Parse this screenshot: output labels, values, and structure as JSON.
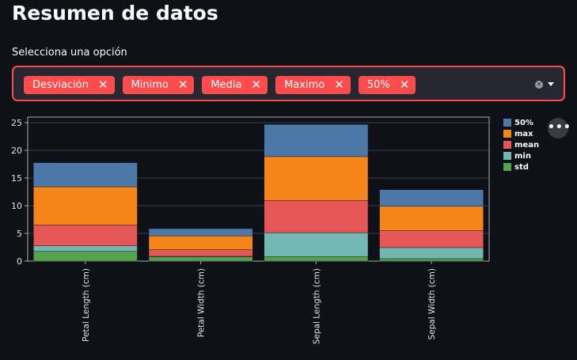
{
  "title": "Resumen de datos",
  "select": {
    "label": "Selecciona una opción",
    "chips": [
      "Desviación",
      "Minimo",
      "Media",
      "Maximo",
      "50%"
    ],
    "chip_close_glyph": "✕",
    "accent_color": "#ff4b4b"
  },
  "icons": {
    "clear": "clear-all-icon",
    "dropdown": "chevron-down-icon",
    "more": "more-options-icon"
  },
  "more_button_glyph": "•••",
  "chart_data": {
    "type": "bar",
    "stacked": true,
    "categories": [
      "Petal Length (cm)",
      "Petal Width (cm)",
      "Sepal Length (cm)",
      "Sepal Width (cm)"
    ],
    "series": [
      {
        "name": "std",
        "color": "#54a24b",
        "values": [
          1.76,
          0.76,
          0.83,
          0.44
        ]
      },
      {
        "name": "min",
        "color": "#72b7b2",
        "values": [
          1.0,
          0.1,
          4.3,
          2.0
        ]
      },
      {
        "name": "mean",
        "color": "#e45756",
        "values": [
          3.76,
          1.2,
          5.84,
          3.06
        ]
      },
      {
        "name": "max",
        "color": "#f58518",
        "values": [
          6.9,
          2.5,
          7.9,
          4.4
        ]
      },
      {
        "name": "50%",
        "color": "#4c78a8",
        "values": [
          4.35,
          1.3,
          5.8,
          3.0
        ]
      }
    ],
    "legend_order": [
      "50%",
      "max",
      "mean",
      "min",
      "std"
    ],
    "yticks": [
      0,
      5,
      10,
      15,
      20,
      25
    ],
    "ylim": [
      0,
      26
    ],
    "grid": true,
    "legend_position": "right"
  }
}
